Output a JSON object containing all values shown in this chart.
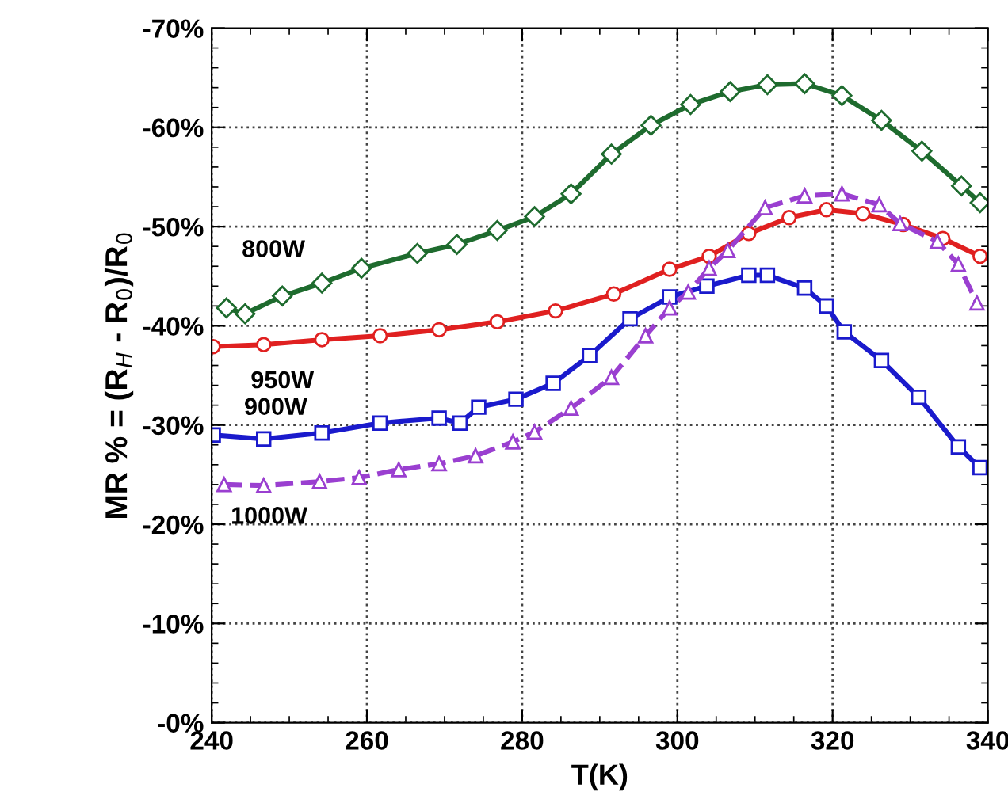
{
  "chart_data": {
    "type": "line",
    "xlabel": "T(K)",
    "ylabel": "MR % = (R$_{H}$ - R$_{0}$)/R$_{0}$",
    "xlim": [
      240,
      340
    ],
    "xticks": [
      240,
      260,
      280,
      300,
      320,
      340
    ],
    "ylim": [
      0,
      -70
    ],
    "yticks": [
      {
        "value": 0,
        "label": "-0%"
      },
      {
        "value": -10,
        "label": "-10%"
      },
      {
        "value": -20,
        "label": "-20%"
      },
      {
        "value": -30,
        "label": "-30%"
      },
      {
        "value": -40,
        "label": "-40%"
      },
      {
        "value": -50,
        "label": "-50%"
      },
      {
        "value": -60,
        "label": "-60%"
      },
      {
        "value": -70,
        "label": "-70%"
      }
    ],
    "grid": true,
    "legend": false,
    "series": [
      {
        "name": "800W",
        "color": "#1e6b2e",
        "marker": "diamond",
        "line_style": "solid",
        "x": [
          241.9,
          244.3,
          249.1,
          254.2,
          259.3,
          266.5,
          271.6,
          276.8,
          281.6,
          286.3,
          291.5,
          296.6,
          301.7,
          306.8,
          311.6,
          316.4,
          321.2,
          326.3,
          331.5,
          336.6,
          339.0
        ],
        "values": [
          -41.8,
          -41.2,
          -43.0,
          -44.3,
          -45.8,
          -47.3,
          -48.2,
          -49.6,
          -51.0,
          -53.3,
          -57.3,
          -60.2,
          -62.3,
          -63.6,
          -64.3,
          -64.4,
          -63.2,
          -60.7,
          -57.6,
          -54.1,
          -52.4
        ]
      },
      {
        "name": "950W",
        "color": "#e02020",
        "marker": "circle",
        "line_style": "solid",
        "x": [
          240.2,
          246.7,
          254.2,
          261.7,
          269.3,
          276.8,
          284.3,
          291.8,
          299.0,
          304.1,
          309.2,
          314.4,
          319.2,
          323.9,
          329.1,
          334.2,
          339.0
        ],
        "values": [
          -37.9,
          -38.1,
          -38.6,
          -39.0,
          -39.6,
          -40.4,
          -41.5,
          -43.2,
          -45.7,
          -47.0,
          -49.3,
          -50.9,
          -51.7,
          -51.3,
          -50.2,
          -48.8,
          -47.0
        ]
      },
      {
        "name": "900W",
        "color": "#1a1acc",
        "marker": "square",
        "line_style": "solid",
        "x": [
          240.2,
          246.7,
          254.2,
          261.7,
          269.3,
          272.0,
          274.4,
          279.2,
          284.0,
          288.7,
          293.9,
          299.0,
          303.8,
          309.2,
          311.6,
          316.4,
          319.2,
          321.5,
          326.3,
          331.1,
          336.2,
          339.0
        ],
        "values": [
          -29.0,
          -28.6,
          -29.2,
          -30.2,
          -30.7,
          -30.2,
          -31.8,
          -32.6,
          -34.2,
          -37.0,
          -40.7,
          -42.9,
          -44.0,
          -45.1,
          -45.1,
          -43.8,
          -42.0,
          -39.4,
          -36.5,
          -32.8,
          -27.8,
          -25.7
        ]
      },
      {
        "name": "1000W",
        "color": "#9a3fd0",
        "marker": "triangle",
        "line_style": "dashed",
        "x": [
          241.6,
          246.7,
          253.9,
          259.0,
          264.1,
          269.3,
          274.0,
          278.8,
          281.6,
          286.3,
          291.5,
          295.9,
          299.0,
          301.4,
          304.1,
          306.5,
          311.3,
          316.4,
          321.2,
          326.0,
          328.7,
          333.5,
          336.2,
          338.6
        ],
        "values": [
          -24.0,
          -23.9,
          -24.3,
          -24.7,
          -25.5,
          -26.1,
          -26.9,
          -28.3,
          -29.3,
          -31.7,
          -34.8,
          -39.0,
          -41.8,
          -43.4,
          -45.8,
          -47.6,
          -51.9,
          -53.1,
          -53.3,
          -52.2,
          -50.3,
          -48.5,
          -46.2,
          -42.3
        ]
      }
    ]
  }
}
